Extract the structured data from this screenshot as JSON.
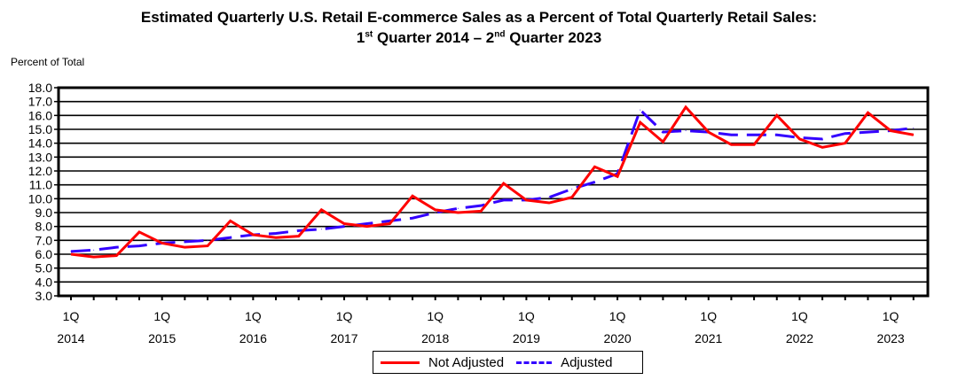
{
  "chart_data": {
    "type": "line",
    "title_line1": "Estimated Quarterly U.S. Retail E-commerce Sales as a Percent of Total Quarterly Retail Sales:",
    "title_line2": {
      "a": "1",
      "a_sup": "st",
      "b": " Quarter 2014 – 2",
      "b_sup": "nd",
      "c": " Quarter 2023"
    },
    "ylabel": "Percent of Total",
    "ylim": [
      3.0,
      18.0
    ],
    "yticks": [
      "3.0",
      "4.0",
      "5.0",
      "6.0",
      "7.0",
      "8.0",
      "9.0",
      "10.0",
      "11.0",
      "12.0",
      "13.0",
      "14.0",
      "15.0",
      "16.0",
      "17.0",
      "18.0"
    ],
    "xtick_labels": [
      {
        "q": "1Q",
        "year": "2014"
      },
      {
        "q": "1Q",
        "year": "2015"
      },
      {
        "q": "1Q",
        "year": "2016"
      },
      {
        "q": "1Q",
        "year": "2017"
      },
      {
        "q": "1Q",
        "year": "2018"
      },
      {
        "q": "1Q",
        "year": "2019"
      },
      {
        "q": "1Q",
        "year": "2020"
      },
      {
        "q": "1Q",
        "year": "2021"
      },
      {
        "q": "1Q",
        "year": "2022"
      },
      {
        "q": "1Q",
        "year": "2023"
      }
    ],
    "grid": true,
    "legend_position": "bottom-center",
    "series": [
      {
        "name": "Not Adjusted",
        "color": "#ff0000",
        "dashed": false,
        "values": [
          6.0,
          5.8,
          5.9,
          7.6,
          6.8,
          6.5,
          6.6,
          8.4,
          7.4,
          7.2,
          7.3,
          9.2,
          8.2,
          8.0,
          8.2,
          10.2,
          9.2,
          9.0,
          9.1,
          11.1,
          9.9,
          9.7,
          10.1,
          12.3,
          11.6,
          15.5,
          14.1,
          16.6,
          14.8,
          13.9,
          13.9,
          16.0,
          14.3,
          13.7,
          14.0,
          16.2,
          14.9,
          14.6
        ]
      },
      {
        "name": "Adjusted",
        "color": "#3300ff",
        "dashed": true,
        "values": [
          6.2,
          6.3,
          6.5,
          6.6,
          6.8,
          6.9,
          7.0,
          7.2,
          7.4,
          7.5,
          7.7,
          7.8,
          8.0,
          8.2,
          8.4,
          8.6,
          9.0,
          9.3,
          9.5,
          9.9,
          9.9,
          10.1,
          10.7,
          11.2,
          11.8,
          16.4,
          14.8,
          14.9,
          14.8,
          14.6,
          14.6,
          14.6,
          14.4,
          14.3,
          14.7,
          14.8,
          14.9,
          15.1
        ]
      }
    ]
  }
}
